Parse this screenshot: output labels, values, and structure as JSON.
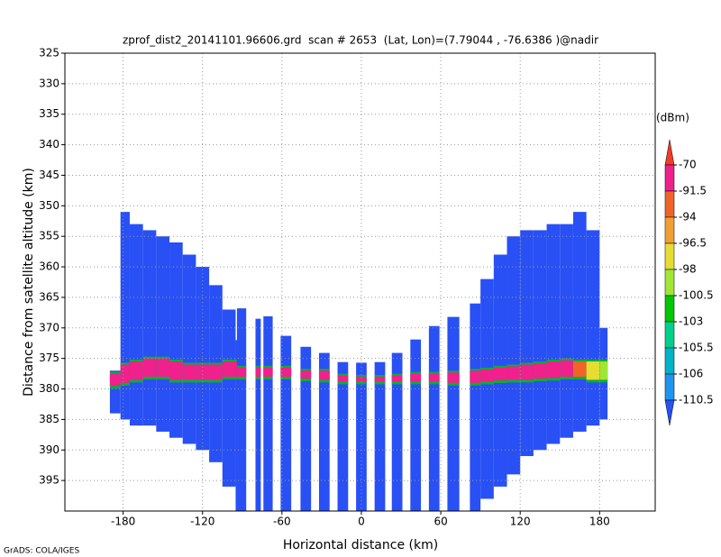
{
  "chart_data": {
    "type": "profile",
    "title": "zprof_dist2_20141101.96606.grd  scan # 2653  (Lat, Lon)=(7.79044 , -76.6386 )@nadir",
    "x_label": "Horizontal distance (km)",
    "y_label": "Distance from satellite altitude (km)",
    "colorbar_label": "(dBm)",
    "credit": "GrADS: COLA/IGES",
    "xlim": [
      -224,
      222
    ],
    "ylim": [
      325,
      400
    ],
    "y_inverted": true,
    "grid": true,
    "xticks": [
      -180,
      -120,
      -60,
      0,
      60,
      120,
      180
    ],
    "yticks": [
      325,
      330,
      335,
      340,
      345,
      350,
      355,
      360,
      365,
      370,
      375,
      380,
      385,
      390,
      395
    ],
    "levels": [
      {
        "value": -70,
        "label": "-70"
      },
      {
        "value": -91.5,
        "label": "-91.5"
      },
      {
        "value": -94,
        "label": "-94"
      },
      {
        "value": -96.5,
        "label": "-96.5"
      },
      {
        "value": -98,
        "label": "-98"
      },
      {
        "value": -100.5,
        "label": "-100.5"
      },
      {
        "value": -103,
        "label": "-103"
      },
      {
        "value": -105.5,
        "label": "-105.5"
      },
      {
        "value": -106,
        "label": "-106"
      },
      {
        "value": -110.5,
        "label": "-110.5"
      }
    ],
    "colors": [
      "#f03c28",
      "#f0208c",
      "#f06428",
      "#f0a032",
      "#e6dc32",
      "#a0e632",
      "#00c800",
      "#00d28c",
      "#00b4c8",
      "#1e96f0",
      "#2850f5"
    ],
    "columns": [
      {
        "x": [
          -190,
          -182
        ],
        "top": 377,
        "bottom": 384,
        "value": -112,
        "band": [
          377.5,
          379.5
        ],
        "band_value": -80
      },
      {
        "x": [
          -182,
          -175
        ],
        "top": 351,
        "bottom": 385,
        "value": -112,
        "band": [
          376,
          379
        ],
        "band_value": -80
      },
      {
        "x": [
          -175,
          -165
        ],
        "top": 353,
        "bottom": 386,
        "value": -112,
        "band": [
          375.5,
          378.5
        ],
        "band_value": -80
      },
      {
        "x": [
          -165,
          -155
        ],
        "top": 354,
        "bottom": 386,
        "value": -112,
        "band": [
          375,
          378
        ],
        "band_value": -80
      },
      {
        "x": [
          -155,
          -145
        ],
        "top": 355,
        "bottom": 387,
        "value": -112,
        "band": [
          375,
          378
        ],
        "band_value": -80
      },
      {
        "x": [
          -145,
          -135
        ],
        "top": 356,
        "bottom": 388,
        "value": -112,
        "band": [
          375.5,
          378.5
        ],
        "band_value": -80
      },
      {
        "x": [
          -135,
          -125
        ],
        "top": 358,
        "bottom": 389,
        "value": -112,
        "band": [
          376,
          378.5
        ],
        "band_value": -80
      },
      {
        "x": [
          -125,
          -115
        ],
        "top": 360,
        "bottom": 390,
        "value": -112,
        "band": [
          376,
          378.5
        ],
        "band_value": -80
      },
      {
        "x": [
          -115,
          -105
        ],
        "top": 363,
        "bottom": 392,
        "value": -112,
        "band": [
          376,
          378.5
        ],
        "band_value": -80
      },
      {
        "x": [
          -105,
          -95
        ],
        "top": 367,
        "bottom": 396,
        "value": -112,
        "band": [
          375.5,
          378
        ],
        "band_value": -80
      },
      {
        "x": [
          -95,
          -90
        ],
        "top": 372,
        "bottom": 400,
        "value": -112,
        "band": [
          375.5,
          378
        ],
        "band_value": -80
      },
      {
        "x": [
          -94,
          -87
        ],
        "top": 366.8,
        "bottom": 400,
        "value": -112,
        "band": [
          376.5,
          378
        ],
        "band_value": -80
      },
      {
        "x": [
          -80,
          -76
        ],
        "top": 368.5,
        "bottom": 400,
        "value": -112,
        "band": [
          376.5,
          378
        ],
        "band_value": -80
      },
      {
        "x": [
          -74,
          -67
        ],
        "top": 368.1,
        "bottom": 400,
        "value": -112,
        "band": [
          376.5,
          378
        ],
        "band_value": -80
      },
      {
        "x": [
          -61,
          -53
        ],
        "top": 371.3,
        "bottom": 400,
        "value": -112,
        "band": [
          376.5,
          378
        ],
        "band_value": -80
      },
      {
        "x": [
          -46,
          -38
        ],
        "top": 373.1,
        "bottom": 400,
        "value": -112,
        "band": [
          377,
          378.3
        ],
        "band_value": -80
      },
      {
        "x": [
          -32,
          -24
        ],
        "top": 374.1,
        "bottom": 400,
        "value": -112,
        "band": [
          377,
          378.5
        ],
        "band_value": -80
      },
      {
        "x": [
          -18,
          -10
        ],
        "top": 375.6,
        "bottom": 400,
        "value": -112,
        "band": [
          377.8,
          378.8
        ],
        "band_value": -80
      },
      {
        "x": [
          -4,
          4
        ],
        "top": 375.7,
        "bottom": 400,
        "value": -112,
        "band": [
          378,
          378.8
        ],
        "band_value": -80
      },
      {
        "x": [
          10,
          18
        ],
        "top": 375.6,
        "bottom": 400,
        "value": -112,
        "band": [
          378,
          378.8
        ],
        "band_value": -80
      },
      {
        "x": [
          23,
          31
        ],
        "top": 374.1,
        "bottom": 400,
        "value": -112,
        "band": [
          377.8,
          378.8
        ],
        "band_value": -80
      },
      {
        "x": [
          37,
          45
        ],
        "top": 371.9,
        "bottom": 400,
        "value": -112,
        "band": [
          377.5,
          378.8
        ],
        "band_value": -80
      },
      {
        "x": [
          51,
          59
        ],
        "top": 369.7,
        "bottom": 400,
        "value": -112,
        "band": [
          377.5,
          378.8
        ],
        "band_value": -80
      },
      {
        "x": [
          65,
          74
        ],
        "top": 368.2,
        "bottom": 400,
        "value": -112,
        "band": [
          377.3,
          379
        ],
        "band_value": -80
      },
      {
        "x": [
          82,
          90
        ],
        "top": 366,
        "bottom": 400,
        "value": -112,
        "band": [
          377,
          379
        ],
        "band_value": -80
      },
      {
        "x": [
          90,
          100
        ],
        "top": 362,
        "bottom": 398,
        "value": -112,
        "band": [
          376.8,
          378.8
        ],
        "band_value": -80
      },
      {
        "x": [
          100,
          110
        ],
        "top": 358,
        "bottom": 396,
        "value": -112,
        "band": [
          376.5,
          378.6
        ],
        "band_value": -80
      },
      {
        "x": [
          110,
          120
        ],
        "top": 355,
        "bottom": 394,
        "value": -112,
        "band": [
          376.3,
          378.5
        ],
        "band_value": -80
      },
      {
        "x": [
          120,
          130
        ],
        "top": 354,
        "bottom": 391,
        "value": -112,
        "band": [
          376,
          378.5
        ],
        "band_value": -80
      },
      {
        "x": [
          130,
          140
        ],
        "top": 354,
        "bottom": 390,
        "value": -112,
        "band": [
          375.8,
          378.3
        ],
        "band_value": -80
      },
      {
        "x": [
          140,
          150
        ],
        "top": 353,
        "bottom": 389,
        "value": -112,
        "band": [
          375.5,
          378.2
        ],
        "band_value": -80
      },
      {
        "x": [
          150,
          160
        ],
        "top": 353,
        "bottom": 388,
        "value": -112,
        "band": [
          375.3,
          378
        ],
        "band_value": -80
      },
      {
        "x": [
          160,
          170
        ],
        "top": 351,
        "bottom": 387,
        "value": -112,
        "band": [
          375.5,
          378
        ],
        "band_value": -94
      },
      {
        "x": [
          170,
          180
        ],
        "top": 354,
        "bottom": 386,
        "value": -112,
        "band": [
          375.5,
          378.5
        ],
        "band_value": -96.6
      },
      {
        "x": [
          180,
          186
        ],
        "top": 370,
        "bottom": 385,
        "value": -112,
        "band": [
          375.5,
          378.5
        ],
        "band_value": -98.5
      }
    ]
  }
}
